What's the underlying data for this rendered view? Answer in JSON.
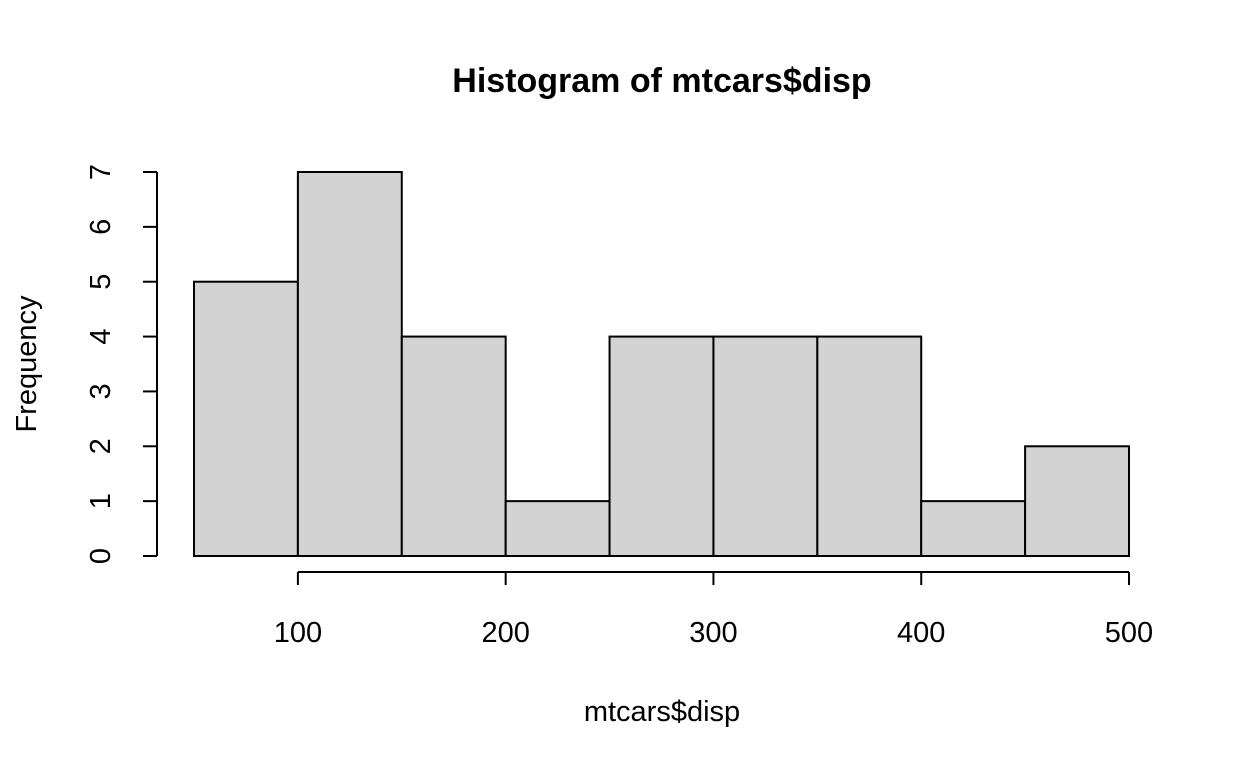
{
  "chart_data": {
    "type": "histogram",
    "title": "Histogram of mtcars$disp",
    "xlabel": "mtcars$disp",
    "ylabel": "Frequency",
    "bins": [
      {
        "start": 50,
        "end": 100,
        "count": 5
      },
      {
        "start": 100,
        "end": 150,
        "count": 7
      },
      {
        "start": 150,
        "end": 200,
        "count": 4
      },
      {
        "start": 200,
        "end": 250,
        "count": 1
      },
      {
        "start": 250,
        "end": 300,
        "count": 4
      },
      {
        "start": 300,
        "end": 350,
        "count": 4
      },
      {
        "start": 350,
        "end": 400,
        "count": 4
      },
      {
        "start": 400,
        "end": 450,
        "count": 1
      },
      {
        "start": 450,
        "end": 500,
        "count": 2
      }
    ],
    "x_ticks": [
      100,
      200,
      300,
      400,
      500
    ],
    "y_ticks": [
      0,
      1,
      2,
      3,
      4,
      5,
      6,
      7
    ],
    "xlim": [
      50,
      500
    ],
    "ylim": [
      0,
      7
    ],
    "bar_fill": "#d3d3d3",
    "bar_stroke": "#000000",
    "grid": false,
    "legend": "none"
  }
}
